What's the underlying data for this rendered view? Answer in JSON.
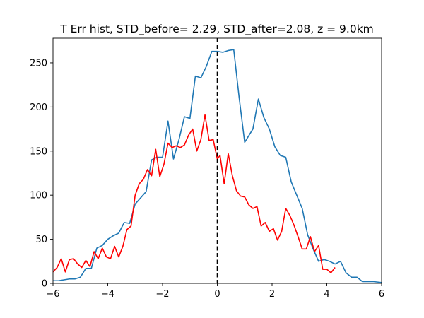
{
  "chart_data": {
    "type": "line",
    "title": "T Err hist, STD_before= 2.29, STD_after=2.08, z = 9.0km",
    "xlabel": "",
    "ylabel": "",
    "xlim": [
      -6,
      6
    ],
    "ylim": [
      0,
      278
    ],
    "x_ticks": [
      -6,
      -4,
      -2,
      0,
      2,
      4,
      6
    ],
    "y_ticks": [
      0,
      50,
      100,
      150,
      200,
      250
    ],
    "x_tick_labels": [
      "−6",
      "−4",
      "−2",
      "0",
      "2",
      "4",
      "6"
    ],
    "y_tick_labels": [
      "0",
      "50",
      "100",
      "150",
      "200",
      "250"
    ],
    "grid": false,
    "legend": "none",
    "vline": {
      "x": 0,
      "color": "#000000",
      "style": "dashed"
    },
    "series": [
      {
        "color": "#1f77b4",
        "x": [
          -6.0,
          -5.8,
          -5.6,
          -5.4,
          -5.2,
          -5.0,
          -4.8,
          -4.6,
          -4.4,
          -4.2,
          -4.0,
          -3.8,
          -3.6,
          -3.4,
          -3.2,
          -3.0,
          -2.8,
          -2.6,
          -2.4,
          -2.2,
          -2.0,
          -1.8,
          -1.6,
          -1.4,
          -1.2,
          -1.0,
          -0.8,
          -0.6,
          -0.4,
          -0.2,
          0.0,
          0.2,
          0.4,
          0.6,
          0.8,
          1.0,
          1.1,
          1.3,
          1.5,
          1.7,
          1.9,
          2.1,
          2.3,
          2.5,
          2.7,
          2.9,
          3.1,
          3.3,
          3.5,
          3.7,
          3.9,
          4.1,
          4.3,
          4.5,
          4.7,
          4.9,
          5.1,
          5.3,
          5.5,
          5.7,
          6.0
        ],
        "values": [
          3,
          3,
          4,
          5,
          5,
          7,
          17,
          17,
          40,
          43,
          50,
          54,
          57,
          69,
          68,
          90,
          97,
          104,
          140,
          143,
          143,
          184,
          141,
          163,
          189,
          187,
          235,
          233,
          246,
          263,
          263,
          262,
          264,
          265,
          210,
          160,
          165,
          175,
          209,
          188,
          175,
          155,
          145,
          143,
          115,
          100,
          85,
          55,
          39,
          25,
          27,
          25,
          22,
          25,
          12,
          7,
          7,
          2,
          2,
          2,
          1
        ]
      },
      {
        "color": "#ff0000",
        "x": [
          -6.0,
          -5.85,
          -5.7,
          -5.55,
          -5.4,
          -5.25,
          -5.1,
          -4.95,
          -4.8,
          -4.65,
          -4.5,
          -4.35,
          -4.2,
          -4.05,
          -3.9,
          -3.75,
          -3.6,
          -3.45,
          -3.3,
          -3.15,
          -3.0,
          -2.85,
          -2.7,
          -2.55,
          -2.4,
          -2.25,
          -2.1,
          -1.95,
          -1.8,
          -1.65,
          -1.5,
          -1.35,
          -1.2,
          -1.05,
          -0.9,
          -0.75,
          -0.6,
          -0.45,
          -0.3,
          -0.15,
          0.0,
          0.1,
          0.25,
          0.4,
          0.55,
          0.7,
          0.85,
          1.0,
          1.15,
          1.3,
          1.45,
          1.6,
          1.75,
          1.9,
          2.05,
          2.2,
          2.35,
          2.5,
          2.65,
          2.8,
          2.95,
          3.1,
          3.25,
          3.4,
          3.55,
          3.7,
          3.85,
          4.0,
          4.15,
          4.3
        ],
        "values": [
          13,
          18,
          28,
          13,
          27,
          28,
          22,
          18,
          26,
          19,
          36,
          28,
          40,
          30,
          28,
          42,
          30,
          42,
          61,
          65,
          100,
          113,
          118,
          129,
          122,
          152,
          121,
          135,
          159,
          154,
          156,
          154,
          157,
          168,
          175,
          150,
          163,
          191,
          162,
          163,
          141,
          145,
          113,
          147,
          122,
          105,
          99,
          98,
          89,
          85,
          87,
          65,
          69,
          59,
          62,
          49,
          59,
          85,
          77,
          66,
          53,
          39,
          39,
          53,
          36,
          43,
          16,
          16,
          12,
          18
        ]
      }
    ]
  }
}
